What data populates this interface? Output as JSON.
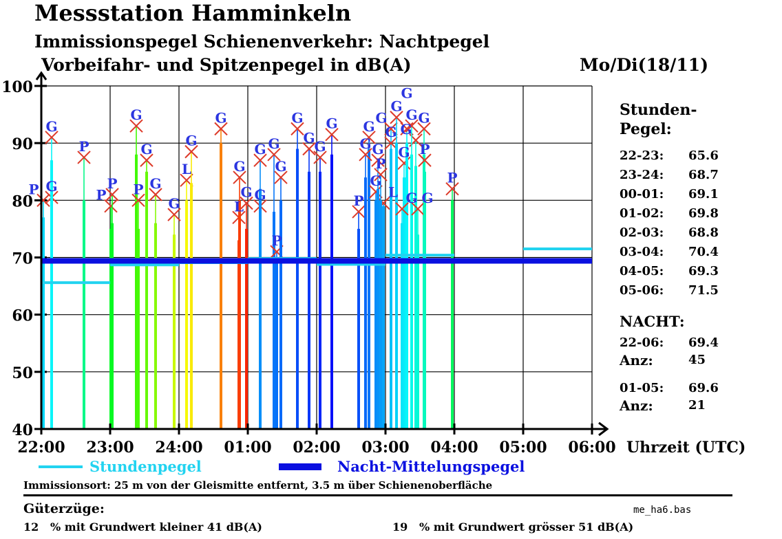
{
  "header": {
    "title": "Messstation Hamminkeln",
    "subtitle1": "Immissionspegel Schienenverkehr: Nachtpegel",
    "subtitle2": "Vorbeifahr- und Spitzenpegel in dB(A)",
    "date": "Mo/Di(18/11)"
  },
  "chart_data": {
    "type": "bar",
    "title": "Vorbeifahr- und Spitzenpegel in dB(A)",
    "xlabel": "Uhrzeit (UTC)",
    "ylabel": "dB(A)",
    "ylim": [
      40,
      100
    ],
    "yticks": [
      "40",
      "50",
      "60",
      "70",
      "80",
      "90",
      "100"
    ],
    "xticks": [
      "22:00",
      "23:00",
      "24:00",
      "01:00",
      "02:00",
      "03:00",
      "04:00",
      "05:00",
      "06:00"
    ],
    "grid": true,
    "legend": [
      {
        "label": "Stundenpegel",
        "color": "#22d3f0"
      },
      {
        "label": "Nacht-Mittelungspegel",
        "color": "#0a10e0"
      }
    ],
    "legend_placement": "bottom",
    "night_level": 69.4,
    "hourly_levels": [
      {
        "hour": "22-23",
        "value": 65.6
      },
      {
        "hour": "23-24",
        "value": 68.7
      },
      {
        "hour": "00-01",
        "value": 69.1
      },
      {
        "hour": "01-02",
        "value": 69.8
      },
      {
        "hour": "02-03",
        "value": 68.8
      },
      {
        "hour": "03-04",
        "value": 70.4
      },
      {
        "hour": "04-05",
        "value": 69.3
      },
      {
        "hour": "05-06",
        "value": 71.5
      }
    ],
    "events": [
      {
        "t": 0.03,
        "peak": 80.0,
        "level": 77,
        "label": "P"
      },
      {
        "t": 0.15,
        "peak": 80.5,
        "level": 77,
        "label": "G"
      },
      {
        "t": 0.15,
        "peak": 91.0,
        "level": 87,
        "label": "G"
      },
      {
        "t": 0.62,
        "peak": 87.5,
        "level": 80,
        "label": "P"
      },
      {
        "t": 1.01,
        "peak": 79.0,
        "level": 75,
        "label": "P"
      },
      {
        "t": 1.03,
        "peak": 81.0,
        "level": 76,
        "label": "P"
      },
      {
        "t": 1.38,
        "peak": 93.0,
        "level": 88,
        "label": "G"
      },
      {
        "t": 1.41,
        "peak": 80.0,
        "level": 75,
        "label": "P"
      },
      {
        "t": 1.53,
        "peak": 87.0,
        "level": 85,
        "label": "G"
      },
      {
        "t": 1.66,
        "peak": 81.0,
        "level": 76,
        "label": "G"
      },
      {
        "t": 1.93,
        "peak": 77.5,
        "level": 74,
        "label": "G"
      },
      {
        "t": 2.11,
        "peak": 83.5,
        "level": 80,
        "label": "L"
      },
      {
        "t": 2.18,
        "peak": 88.5,
        "level": 83,
        "label": "G"
      },
      {
        "t": 2.61,
        "peak": 92.5,
        "level": 90,
        "label": "G"
      },
      {
        "t": 2.87,
        "peak": 77.0,
        "level": 73,
        "label": "L"
      },
      {
        "t": 2.88,
        "peak": 84.0,
        "level": 80,
        "label": "G"
      },
      {
        "t": 2.98,
        "peak": 79.5,
        "level": 75,
        "label": "G"
      },
      {
        "t": 3.18,
        "peak": 79.0,
        "level": 75,
        "label": "G"
      },
      {
        "t": 3.18,
        "peak": 87.0,
        "level": 82,
        "label": "G"
      },
      {
        "t": 3.38,
        "peak": 88.0,
        "level": 78,
        "label": "G"
      },
      {
        "t": 3.42,
        "peak": 71.0,
        "level": 70,
        "label": "P"
      },
      {
        "t": 3.48,
        "peak": 84.0,
        "level": 80,
        "label": "G"
      },
      {
        "t": 3.72,
        "peak": 92.5,
        "level": 89,
        "label": "G"
      },
      {
        "t": 3.89,
        "peak": 89.0,
        "level": 85,
        "label": "G"
      },
      {
        "t": 4.05,
        "peak": 87.5,
        "level": 85,
        "label": "G"
      },
      {
        "t": 4.22,
        "peak": 91.5,
        "level": 88,
        "label": "G"
      },
      {
        "t": 4.76,
        "peak": 91.0,
        "level": 89,
        "label": "G"
      },
      {
        "t": 4.97,
        "peak": 79.5,
        "level": 79,
        "label": "L"
      },
      {
        "t": 5.08,
        "peak": 92.5,
        "level": 89,
        "label": "G"
      },
      {
        "t": 5.44,
        "peak": 90.5,
        "level": 86,
        "label": "G"
      },
      {
        "t": 5.56,
        "peak": 92.5,
        "level": 88,
        "label": "G"
      },
      {
        "t": 5.27,
        "peak": 86.5,
        "level": 84,
        "label": "G"
      },
      {
        "t": 5.31,
        "peak": 92.5,
        "level": 90,
        "label": "G"
      },
      {
        "t": 4.61,
        "peak": 78.0,
        "level": 75,
        "label": "P"
      },
      {
        "t": 4.71,
        "peak": 88.0,
        "level": 84,
        "label": "G"
      },
      {
        "t": 4.86,
        "peak": 81.5,
        "level": 80,
        "label": "G"
      },
      {
        "t": 4.89,
        "peak": 87.0,
        "level": 82,
        "label": "G"
      },
      {
        "t": 4.93,
        "peak": 84.5,
        "level": 80,
        "label": "P"
      },
      {
        "t": 5.08,
        "peak": 90.0,
        "level": 88,
        "label": "G"
      },
      {
        "t": 5.16,
        "peak": 94.5,
        "level": 90,
        "label": "G"
      },
      {
        "t": 5.24,
        "peak": 78.5,
        "level": 76,
        "label": "G"
      },
      {
        "t": 5.38,
        "peak": 93.0,
        "level": 88,
        "label": "G"
      },
      {
        "t": 5.47,
        "peak": 78.5,
        "level": 74,
        "label": "G"
      },
      {
        "t": 5.57,
        "peak": 87.0,
        "level": 85,
        "label": "P"
      },
      {
        "t": 5.97,
        "peak": 82.0,
        "level": 80,
        "label": "P"
      }
    ]
  },
  "sidebar": {
    "heading1": "Stunden-",
    "heading2": "Pegel:",
    "rows": [
      {
        "label": "22-23:",
        "value": "65.6"
      },
      {
        "label": "23-24:",
        "value": "68.7"
      },
      {
        "label": "00-01:",
        "value": "69.1"
      },
      {
        "label": "01-02:",
        "value": "69.8"
      },
      {
        "label": "02-03:",
        "value": "68.8"
      },
      {
        "label": "03-04:",
        "value": "70.4"
      },
      {
        "label": "04-05:",
        "value": "69.3"
      },
      {
        "label": "05-06:",
        "value": "71.5"
      }
    ],
    "nacht_heading": "NACHT:",
    "nacht": [
      {
        "label": "22-06:",
        "value": "69.4",
        "anz_label": "Anz:",
        "anz": "45"
      },
      {
        "label": "01-05:",
        "value": "69.6",
        "anz_label": "Anz:",
        "anz": "21"
      }
    ]
  },
  "footer": {
    "immissionsort": "Immissionsort: 25 m von der Gleismitte entfernt, 3.5 m über Schienenoberfläche",
    "gueterzuege": "Güterzüge:",
    "filename": "me_ha6.bas",
    "low_pct": "12",
    "low_text": "% mit Grundwert kleiner 41 dB(A)",
    "high_pct": "19",
    "high_text": "% mit Grundwert grösser 51 dB(A)"
  },
  "colors": {
    "stunden": "#22d3f0",
    "nacht": "#0a10e0",
    "marker": "#dd3b2a",
    "label": "#2b35e0"
  }
}
